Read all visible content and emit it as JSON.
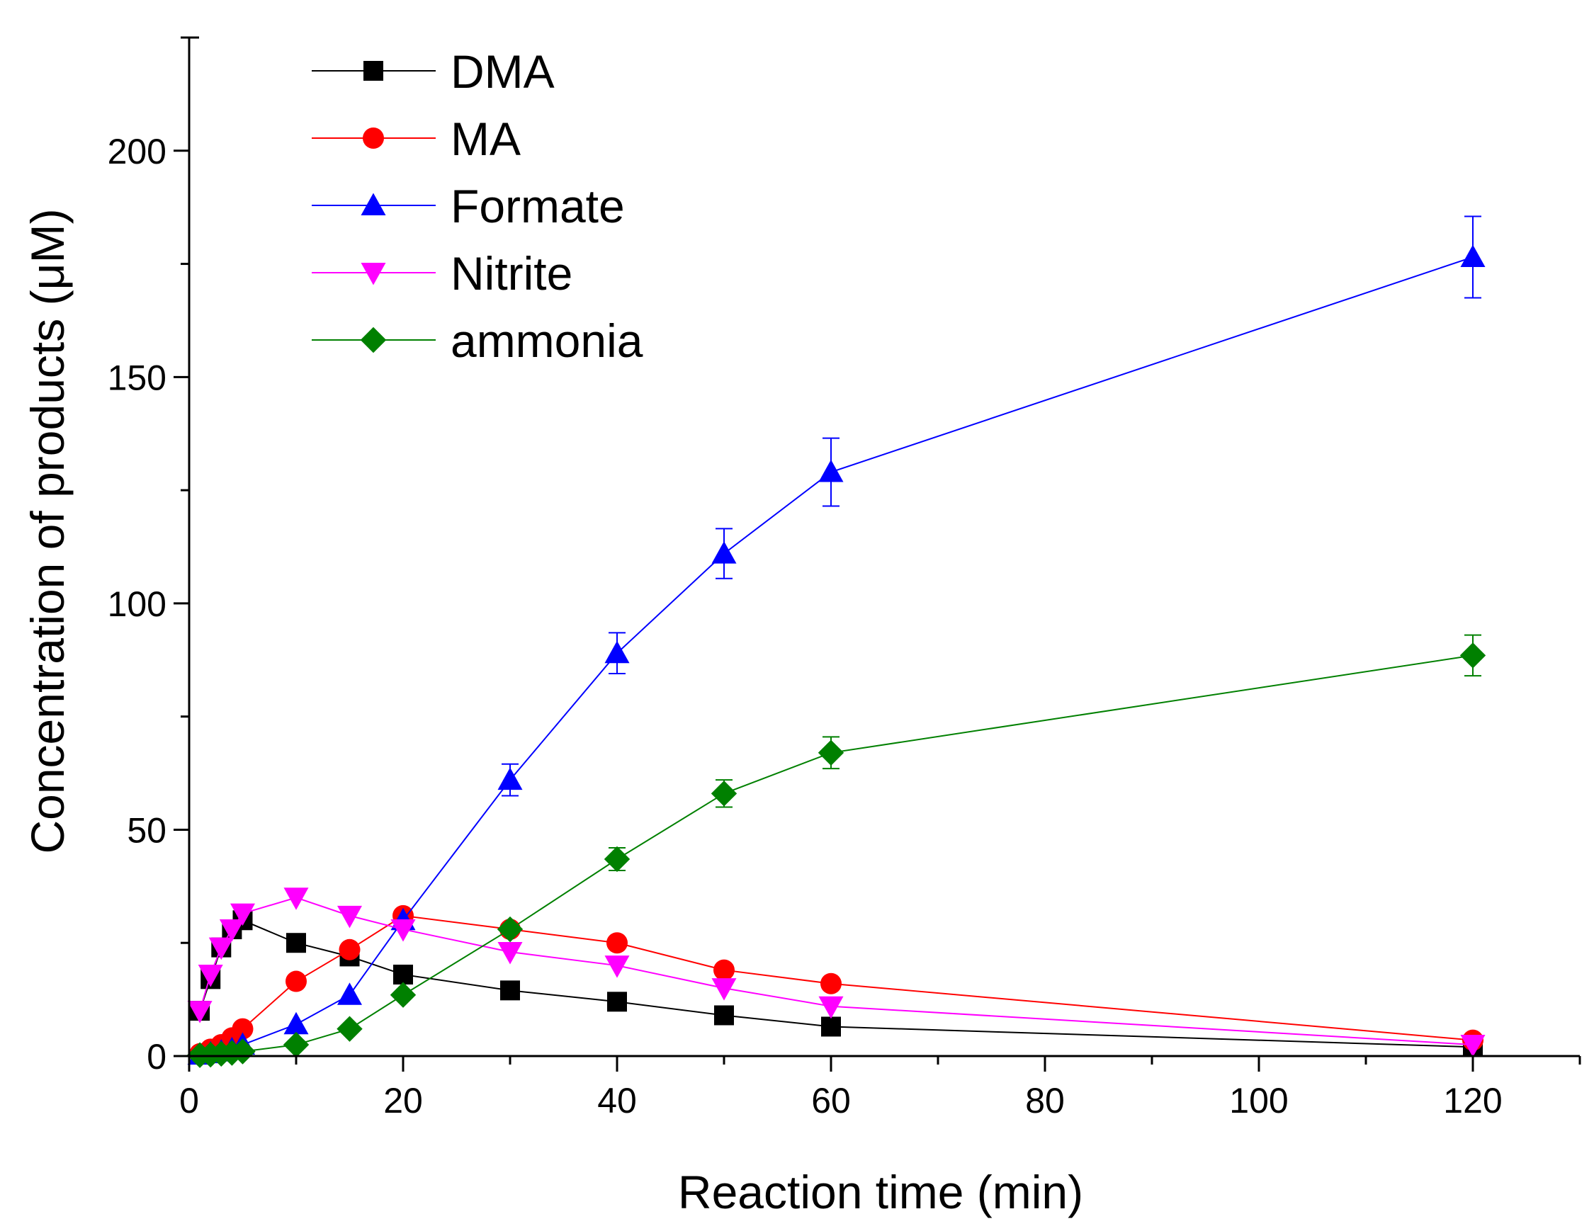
{
  "chart_data": {
    "type": "line",
    "title": "",
    "xlabel": "Reaction time (min)",
    "ylabel": "Concentration of products (μM)",
    "xlim": [
      0,
      130
    ],
    "ylim": [
      0,
      225
    ],
    "xticks": [
      0,
      20,
      40,
      60,
      80,
      100,
      120
    ],
    "yticks": [
      0,
      50,
      100,
      150,
      200
    ],
    "xtick_labels": [
      "0",
      "20",
      "40",
      "60",
      "80",
      "100",
      "120"
    ],
    "ytick_labels": [
      "0",
      "50",
      "100",
      "150",
      "200"
    ],
    "grid": false,
    "legend_position": "top-left",
    "series": [
      {
        "name": "DMA",
        "color": "#000000",
        "marker": "square",
        "x": [
          1,
          2,
          3,
          4,
          5,
          10,
          15,
          20,
          30,
          40,
          50,
          60,
          120
        ],
        "y": [
          10,
          17,
          24,
          28,
          30,
          25,
          22,
          18,
          14.5,
          12,
          9,
          6.5,
          2
        ],
        "err": []
      },
      {
        "name": "MA",
        "color": "#ff0000",
        "marker": "circle",
        "x": [
          1,
          2,
          3,
          4,
          5,
          10,
          15,
          20,
          30,
          40,
          50,
          60,
          120
        ],
        "y": [
          0.5,
          1.5,
          2.5,
          4,
          6,
          16.5,
          23.5,
          31,
          28,
          25,
          19,
          16,
          3.5
        ],
        "err": []
      },
      {
        "name": "Formate",
        "color": "#0000ff",
        "marker": "triangle-up",
        "x": [
          1,
          2,
          3,
          4,
          5,
          10,
          15,
          20,
          30,
          40,
          50,
          60,
          120
        ],
        "y": [
          0.3,
          0.6,
          1,
          1.5,
          2.5,
          7,
          13.5,
          30,
          61,
          89,
          111,
          129,
          176.5
        ],
        "err": [
          0,
          0,
          0,
          0,
          0,
          0,
          0,
          0,
          3.5,
          4.5,
          5.5,
          7.5,
          9
        ]
      },
      {
        "name": "Nitrite",
        "color": "#ff00ff",
        "marker": "triangle-down",
        "x": [
          1,
          2,
          3,
          4,
          5,
          10,
          15,
          20,
          30,
          40,
          50,
          60,
          120
        ],
        "y": [
          10,
          18,
          24,
          28,
          31.5,
          35,
          31,
          28,
          23,
          20,
          15,
          11,
          2.5
        ],
        "err": []
      },
      {
        "name": "ammonia",
        "color": "#008000",
        "marker": "diamond",
        "x": [
          1,
          2,
          3,
          4,
          5,
          10,
          15,
          20,
          30,
          40,
          50,
          60,
          120
        ],
        "y": [
          0.2,
          0.3,
          0.5,
          0.7,
          1,
          2.5,
          6,
          13.5,
          28,
          43.5,
          58,
          67,
          88.5
        ],
        "err": [
          0,
          0,
          0,
          0,
          0,
          0,
          0,
          0,
          0,
          2.5,
          3,
          3.5,
          4.5
        ]
      }
    ]
  }
}
